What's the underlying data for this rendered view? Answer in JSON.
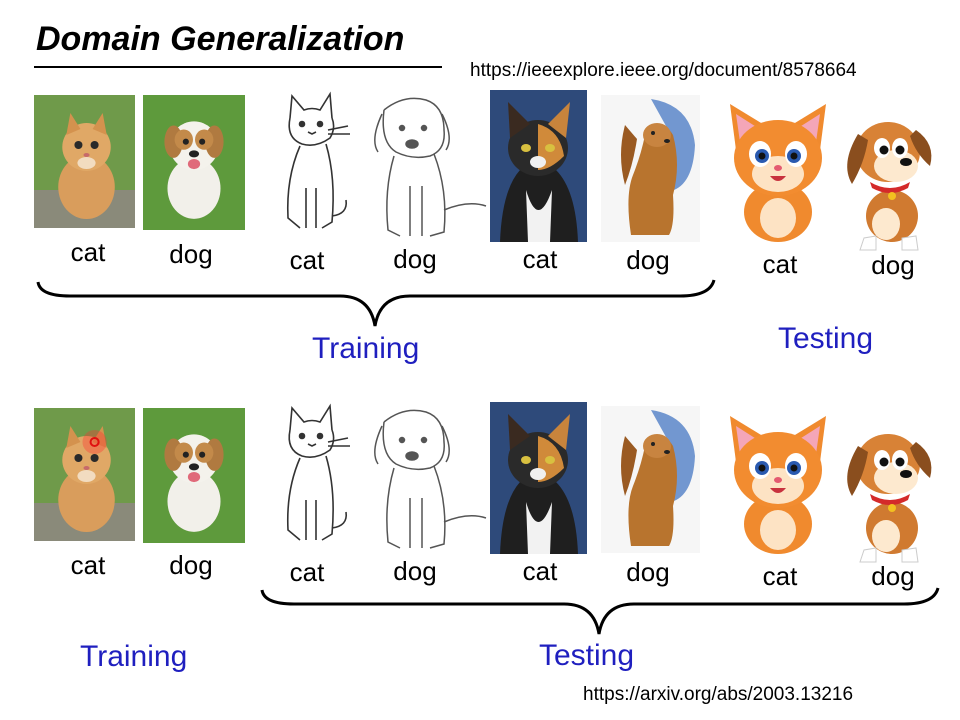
{
  "title": "Domain Generalization",
  "urls": {
    "top": "https://ieeexplore.ieee.org/document/8578664",
    "bottom": "https://arxiv.org/abs/2003.13216"
  },
  "labels": [
    "cat",
    "dog",
    "cat",
    "dog",
    "cat",
    "dog",
    "cat",
    "dog"
  ],
  "rows": [
    {
      "training_label": "Training",
      "testing_label": "Testing"
    },
    {
      "training_label": "Training",
      "testing_label": "Testing"
    }
  ],
  "colors": {
    "group_label": "#1f1fbf"
  }
}
